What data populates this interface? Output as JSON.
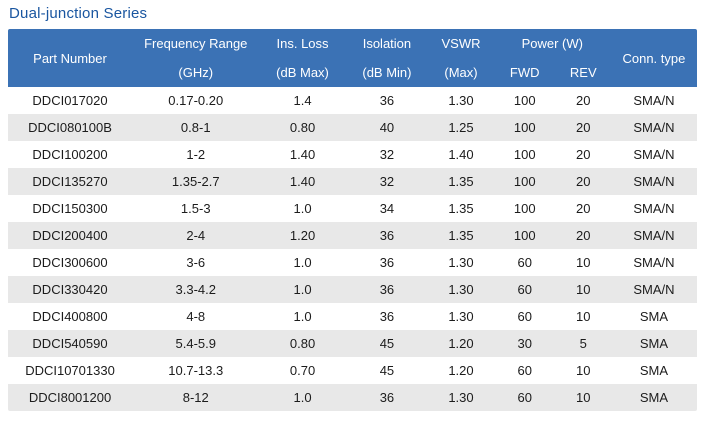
{
  "title": "Dual-junction Series",
  "colors": {
    "header_bg": "#3b72b5",
    "header_text": "#ffffff",
    "row_alt_bg": "#e8e8e8",
    "row_bg": "#ffffff",
    "title_text": "#1a56a0",
    "body_text": "#1c1c1c"
  },
  "table": {
    "headers": {
      "part_number": "Part Number",
      "freq_line1": "Frequency Range",
      "freq_line2": "(GHz)",
      "ins_loss_line1": "Ins. Loss",
      "ins_loss_line2": "(dB Max)",
      "isolation_line1": "Isolation",
      "isolation_line2": "(dB Min)",
      "vswr_line1": "VSWR",
      "vswr_line2": "(Max)",
      "power_group": "Power (W)",
      "power_fwd": "FWD",
      "power_rev": "REV",
      "conn_type": "Conn. type"
    },
    "column_keys": [
      "part-number",
      "frequency-range",
      "ins-loss",
      "isolation",
      "vswr",
      "power-fwd",
      "power-rev",
      "conn-type"
    ],
    "rows": [
      [
        "DDCI017020",
        "0.17-0.20",
        "1.4",
        "36",
        "1.30",
        "100",
        "20",
        "SMA/N"
      ],
      [
        "DDCI080100B",
        "0.8-1",
        "0.80",
        "40",
        "1.25",
        "100",
        "20",
        "SMA/N"
      ],
      [
        "DDCI100200",
        "1-2",
        "1.40",
        "32",
        "1.40",
        "100",
        "20",
        "SMA/N"
      ],
      [
        "DDCI135270",
        "1.35-2.7",
        "1.40",
        "32",
        "1.35",
        "100",
        "20",
        "SMA/N"
      ],
      [
        "DDCI150300",
        "1.5-3",
        "1.0",
        "34",
        "1.35",
        "100",
        "20",
        "SMA/N"
      ],
      [
        "DDCI200400",
        "2-4",
        "1.20",
        "36",
        "1.35",
        "100",
        "20",
        "SMA/N"
      ],
      [
        "DDCI300600",
        "3-6",
        "1.0",
        "36",
        "1.30",
        "60",
        "10",
        "SMA/N"
      ],
      [
        "DDCI330420",
        "3.3-4.2",
        "1.0",
        "36",
        "1.30",
        "60",
        "10",
        "SMA/N"
      ],
      [
        "DDCI400800",
        "4-8",
        "1.0",
        "36",
        "1.30",
        "60",
        "10",
        "SMA"
      ],
      [
        "DDCI540590",
        "5.4-5.9",
        "0.80",
        "45",
        "1.20",
        "30",
        "5",
        "SMA"
      ],
      [
        "DDCI10701330",
        "10.7-13.3",
        "0.70",
        "45",
        "1.20",
        "60",
        "10",
        "SMA"
      ],
      [
        "DDCI8001200",
        "8-12",
        "1.0",
        "36",
        "1.30",
        "60",
        "10",
        "SMA"
      ]
    ]
  }
}
